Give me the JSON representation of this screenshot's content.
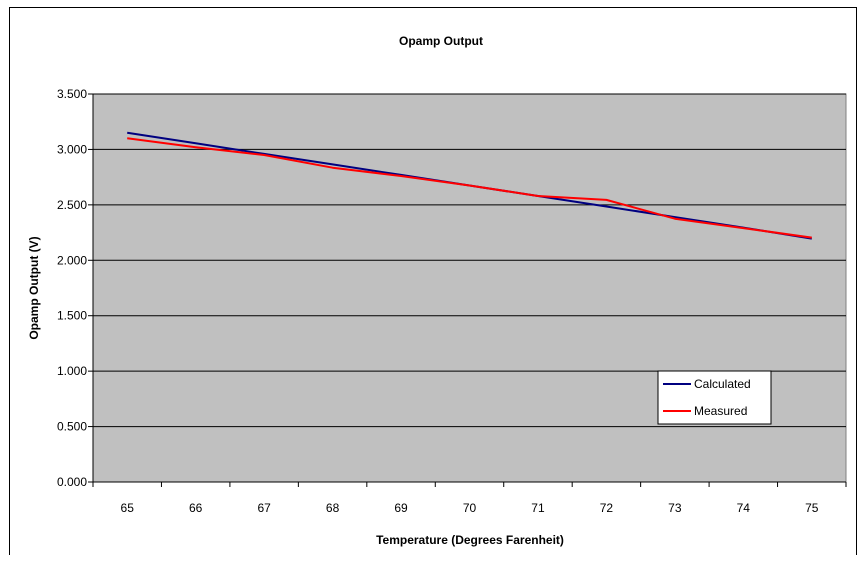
{
  "chart_data": {
    "type": "line",
    "title": "Opamp Output",
    "xlabel": "Temperature (Degrees Farenheit)",
    "ylabel": "Opamp Output (V)",
    "categories": [
      "65",
      "66",
      "67",
      "68",
      "69",
      "70",
      "71",
      "72",
      "73",
      "74",
      "75"
    ],
    "yticks": [
      "0.000",
      "0.500",
      "1.000",
      "1.500",
      "2.000",
      "2.500",
      "3.000",
      "3.500"
    ],
    "ylim": [
      0,
      3.5
    ],
    "grid": true,
    "legend_position": "right",
    "plot_background": "#c0c0c0",
    "series": [
      {
        "name": "Calculated",
        "color": "#000080",
        "values": [
          3.15,
          3.055,
          2.96,
          2.865,
          2.77,
          2.675,
          2.58,
          2.485,
          2.39,
          2.295,
          2.195
        ]
      },
      {
        "name": "Measured",
        "color": "#ff0000",
        "values": [
          3.1,
          3.02,
          2.95,
          2.835,
          2.76,
          2.675,
          2.58,
          2.545,
          2.375,
          2.29,
          2.205
        ]
      }
    ]
  }
}
